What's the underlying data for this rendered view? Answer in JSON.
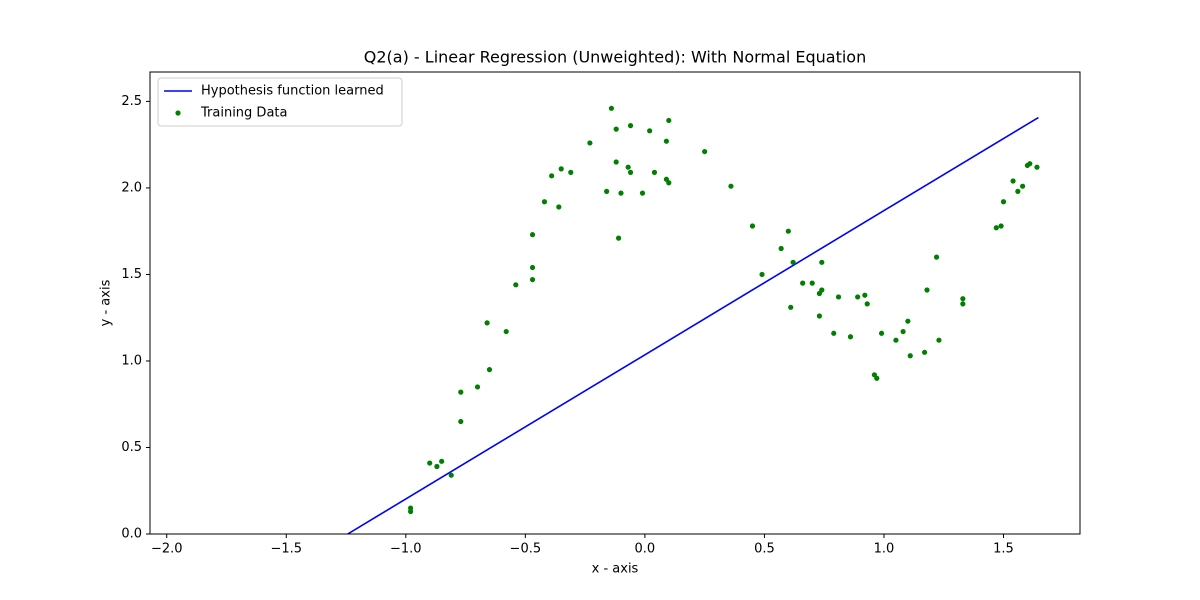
{
  "chart_data": {
    "type": "scatter",
    "title": "Q2(a) - Linear Regression (Unweighted): With Normal Equation",
    "x_label": "x - axis",
    "y_label": "y - axis",
    "xlim": [
      -2.07,
      1.82
    ],
    "ylim": [
      0,
      2.67
    ],
    "xticks": [
      {
        "value": -2,
        "label": "−2.0"
      },
      {
        "value": -1.5,
        "label": "−1.5"
      },
      {
        "value": -1,
        "label": "−1.0"
      },
      {
        "value": -0.5,
        "label": "−0.5"
      },
      {
        "value": 0,
        "label": "0.0"
      },
      0.5,
      {
        "value": 1,
        "label": "1.0"
      },
      1.5
    ],
    "yticks": [
      {
        "value": 0,
        "label": "0.0"
      },
      0.5,
      {
        "value": 1,
        "label": "1.0"
      },
      1.5,
      {
        "value": 2,
        "label": "2.0"
      },
      2.5
    ],
    "legend": "upper left",
    "series": [
      {
        "name": "Hypothesis function learned",
        "kind": "line",
        "color": "#0000ff",
        "x": [
          -1.243,
          1.646
        ],
        "values": [
          0,
          2.407
        ]
      },
      {
        "name": "Training Data",
        "kind": "scatter",
        "color": "#008000",
        "x": [
          -0.98,
          -0.98,
          -0.9,
          -0.87,
          -0.85,
          -0.81,
          -0.77,
          -0.77,
          -0.7,
          -0.66,
          -0.65,
          -0.58,
          -0.54,
          -0.47,
          -0.47,
          -0.47,
          -0.42,
          -0.39,
          -0.36,
          -0.35,
          -0.31,
          -0.23,
          -0.16,
          -0.14,
          -0.12,
          -0.12,
          -0.11,
          -0.1,
          -0.07,
          -0.06,
          -0.06,
          -0.01,
          0.02,
          0.04,
          0.09,
          0.1,
          0.09,
          0.1,
          0.25,
          0.36,
          0.45,
          0.49,
          0.57,
          0.6,
          0.61,
          0.62,
          0.66,
          0.7,
          0.73,
          0.73,
          0.74,
          0.74,
          0.79,
          0.81,
          0.86,
          0.89,
          0.92,
          0.93,
          0.96,
          0.97,
          0.99,
          1.05,
          1.08,
          1.1,
          1.11,
          1.17,
          1.18,
          1.22,
          1.23,
          1.33,
          1.33,
          1.47,
          1.49,
          1.5,
          1.54,
          1.56,
          1.58,
          1.6,
          1.61,
          1.64
        ],
        "values": [
          0.15,
          0.13,
          0.41,
          0.39,
          0.42,
          0.34,
          0.65,
          0.82,
          0.85,
          1.22,
          0.95,
          1.17,
          1.44,
          1.47,
          1.54,
          1.73,
          1.92,
          2.07,
          1.89,
          2.11,
          2.09,
          2.26,
          1.98,
          2.46,
          2.34,
          2.15,
          1.71,
          1.97,
          2.12,
          2.36,
          2.09,
          1.97,
          2.33,
          2.09,
          2.27,
          2.39,
          2.05,
          2.03,
          2.21,
          2.01,
          1.78,
          1.5,
          1.65,
          1.75,
          1.31,
          1.57,
          1.45,
          1.45,
          1.39,
          1.26,
          1.41,
          1.57,
          1.16,
          1.37,
          1.14,
          1.37,
          1.38,
          1.33,
          0.92,
          0.9,
          1.16,
          1.12,
          1.17,
          1.23,
          1.03,
          1.05,
          1.41,
          1.6,
          1.12,
          1.33,
          1.36,
          1.77,
          1.78,
          1.92,
          2.04,
          1.98,
          2.01,
          2.13,
          2.14,
          2.12
        ]
      }
    ]
  }
}
